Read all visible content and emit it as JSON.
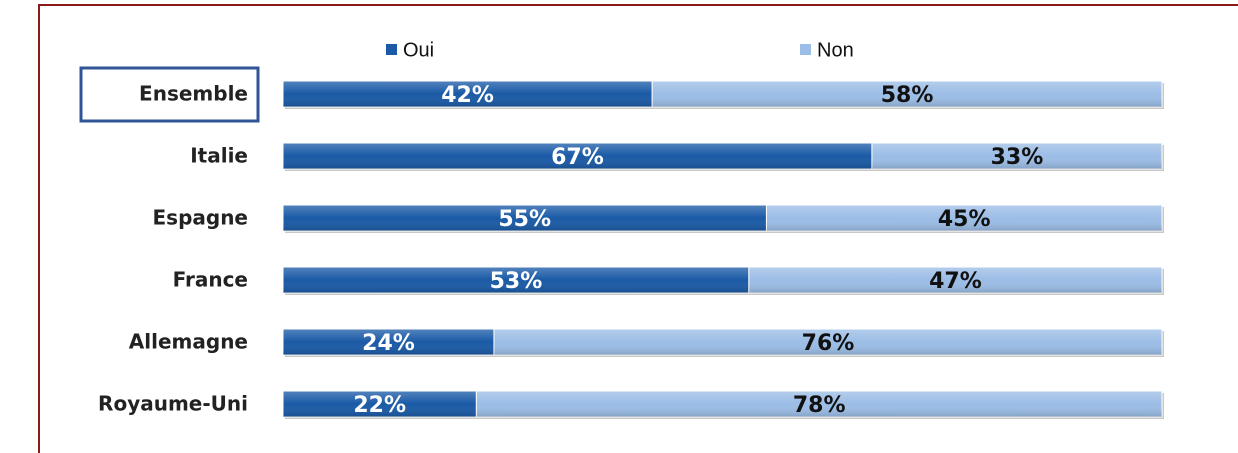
{
  "chart_data": {
    "type": "stacked-bar-horizontal",
    "categories": [
      "Ensemble",
      "Italie",
      "Espagne",
      "France",
      "Allemagne",
      "Royaume-Uni"
    ],
    "series": [
      {
        "name": "Oui",
        "color": "#1a5aa6",
        "values": [
          42,
          67,
          55,
          53,
          24,
          22
        ],
        "value_labels": [
          "42%",
          "67%",
          "55%",
          "53%",
          "24%",
          "22%"
        ]
      },
      {
        "name": "Non",
        "color": "#9bbde6",
        "values": [
          58,
          33,
          45,
          47,
          76,
          78
        ],
        "value_labels": [
          "58%",
          "33%",
          "45%",
          "47%",
          "76%",
          "78%"
        ]
      }
    ],
    "legend": "top"
  }
}
